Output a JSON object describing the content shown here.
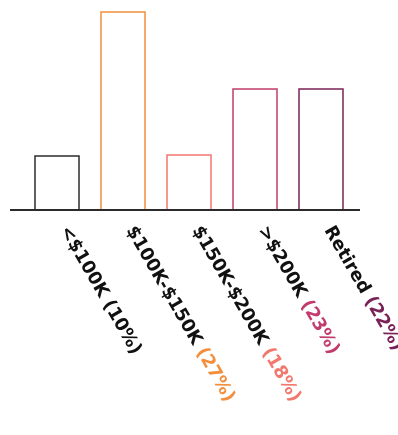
{
  "chart_data": {
    "type": "bar",
    "categories": [
      {
        "label": "<$100K",
        "pct": "(10%)",
        "value": 10
      },
      {
        "label": "$100K-$150K",
        "pct": "(27%)",
        "value": 27
      },
      {
        "label": "$150K-$200K",
        "pct": "(18%)",
        "value": 18
      },
      {
        "label": ">$200K",
        "pct": "(23%)",
        "value": 23
      },
      {
        "label": "Retired",
        "pct": "(22%)",
        "value": 22
      }
    ],
    "values": [
      10,
      27,
      18,
      23,
      22
    ],
    "displayed_heights": [
      54,
      198,
      55,
      121,
      121
    ],
    "colors": [
      "#2b2b2b",
      "#f28e3c",
      "#f2776d",
      "#c23b6d",
      "#7a2257"
    ],
    "title": "",
    "xlabel": "",
    "ylabel": "",
    "grid": false,
    "legend": "none"
  }
}
